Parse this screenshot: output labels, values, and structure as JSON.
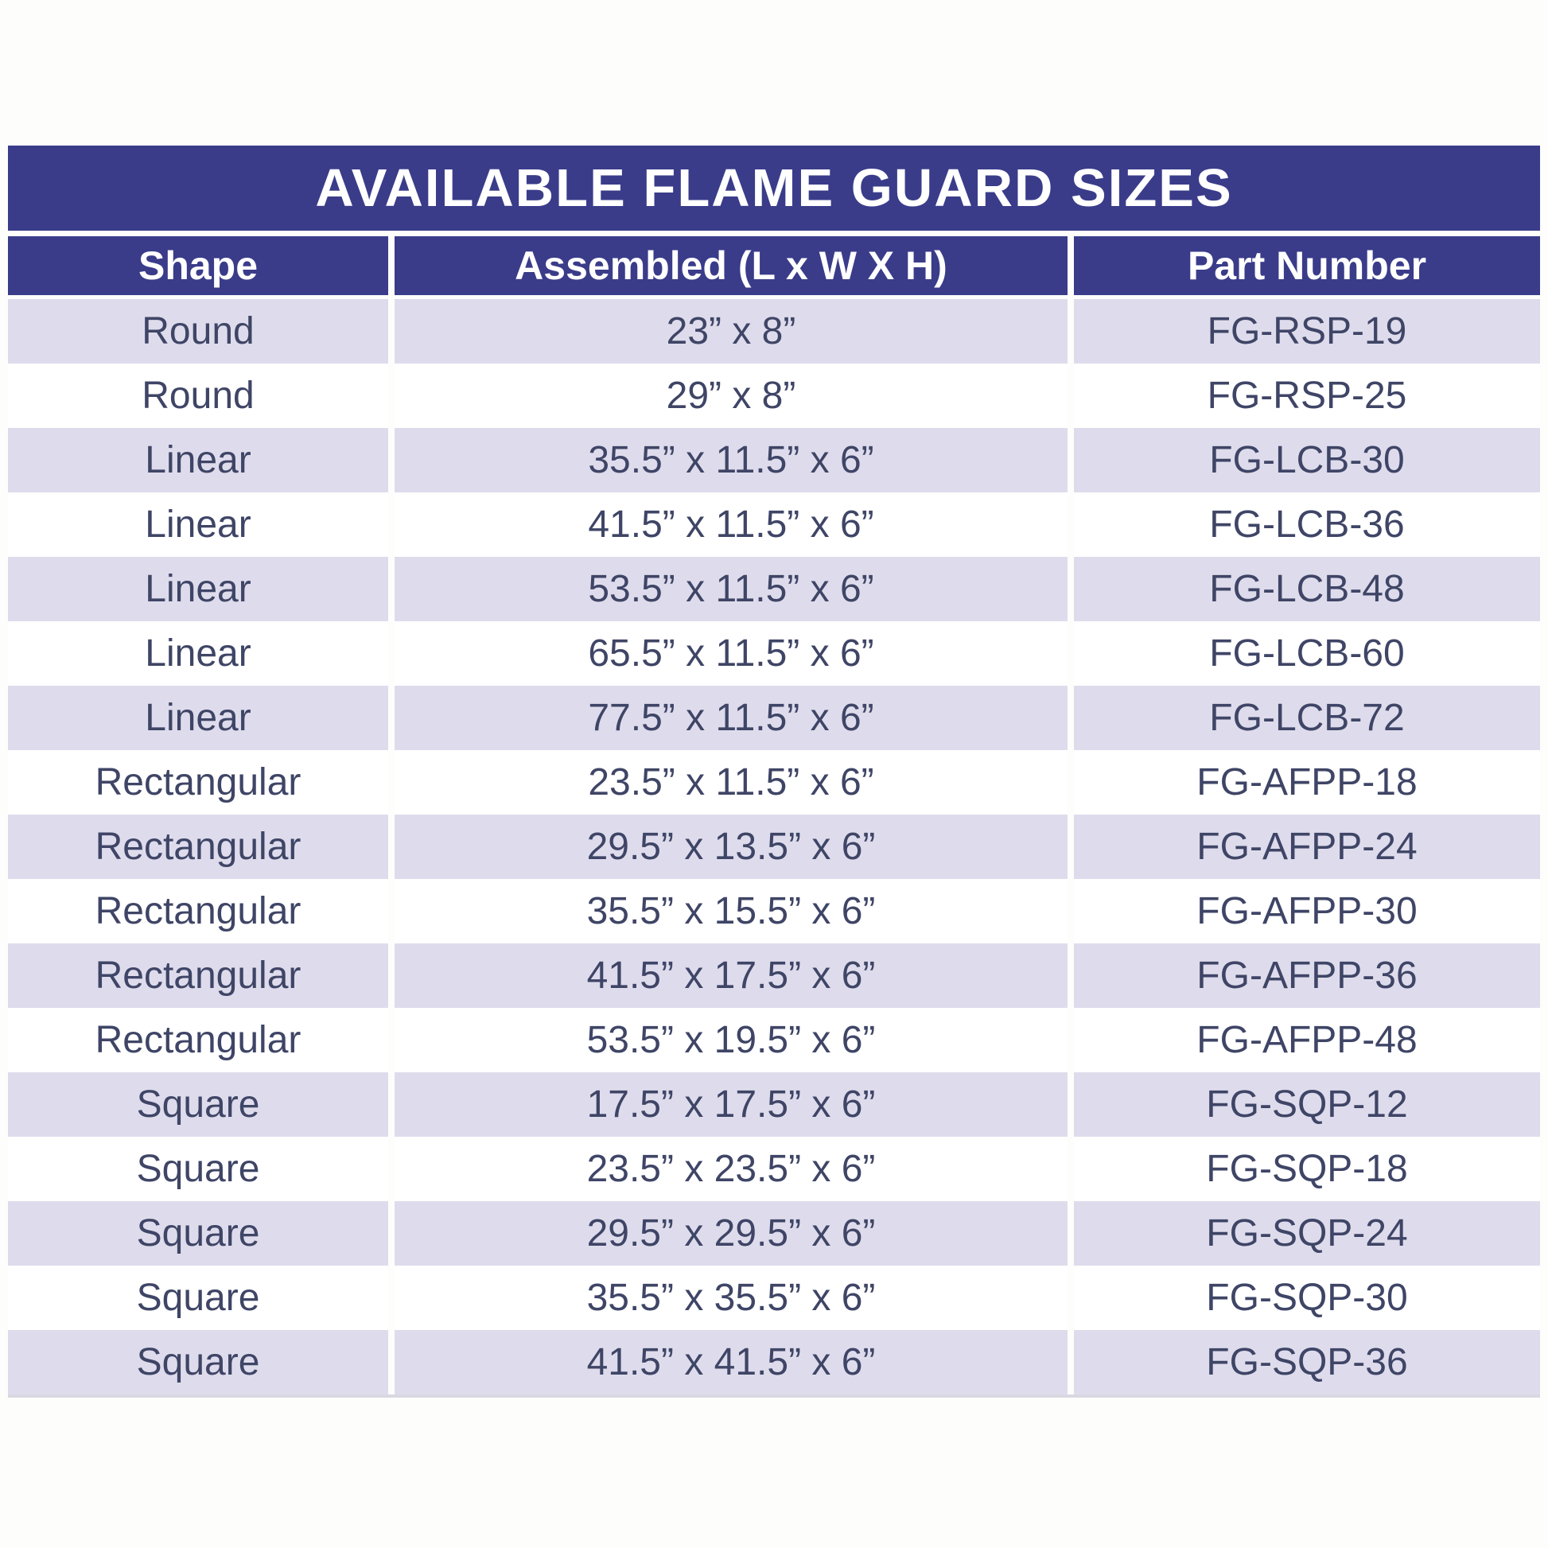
{
  "title": "AVAILABLE FLAME GUARD SIZES",
  "table": {
    "columns": [
      {
        "label": "Shape"
      },
      {
        "label": "Assembled (L x W X H)"
      },
      {
        "label": "Part Number"
      }
    ],
    "rows": [
      {
        "shape": "Round",
        "assembled": "23” x 8”",
        "part": "FG-RSP-19"
      },
      {
        "shape": "Round",
        "assembled": "29” x 8”",
        "part": "FG-RSP-25"
      },
      {
        "shape": "Linear",
        "assembled": "35.5” x 11.5” x 6”",
        "part": "FG-LCB-30"
      },
      {
        "shape": "Linear",
        "assembled": "41.5” x 11.5” x 6”",
        "part": "FG-LCB-36"
      },
      {
        "shape": "Linear",
        "assembled": "53.5” x 11.5” x 6”",
        "part": "FG-LCB-48"
      },
      {
        "shape": "Linear",
        "assembled": "65.5” x 11.5” x 6”",
        "part": "FG-LCB-60"
      },
      {
        "shape": "Linear",
        "assembled": "77.5” x 11.5” x 6”",
        "part": "FG-LCB-72"
      },
      {
        "shape": "Rectangular",
        "assembled": "23.5” x 11.5” x 6”",
        "part": "FG-AFPP-18"
      },
      {
        "shape": "Rectangular",
        "assembled": "29.5” x 13.5” x 6”",
        "part": "FG-AFPP-24"
      },
      {
        "shape": "Rectangular",
        "assembled": "35.5” x 15.5” x 6”",
        "part": "FG-AFPP-30"
      },
      {
        "shape": "Rectangular",
        "assembled": "41.5” x 17.5” x 6”",
        "part": "FG-AFPP-36"
      },
      {
        "shape": "Rectangular",
        "assembled": "53.5” x 19.5” x 6”",
        "part": "FG-AFPP-48"
      },
      {
        "shape": "Square",
        "assembled": "17.5” x 17.5” x 6”",
        "part": "FG-SQP-12"
      },
      {
        "shape": "Square",
        "assembled": "23.5” x 23.5” x 6”",
        "part": "FG-SQP-18"
      },
      {
        "shape": "Square",
        "assembled": "29.5” x 29.5” x 6”",
        "part": "FG-SQP-24"
      },
      {
        "shape": "Square",
        "assembled": "35.5” x 35.5” x 6”",
        "part": "FG-SQP-30"
      },
      {
        "shape": "Square",
        "assembled": "41.5” x 41.5” x 6”",
        "part": "FG-SQP-36"
      }
    ]
  },
  "colors": {
    "navy": "#3a3c8a",
    "header_text": "#ffffff",
    "row_bg": "#ffffff",
    "row_alt_bg": "#dedcec",
    "body_text": "#3f4566"
  }
}
